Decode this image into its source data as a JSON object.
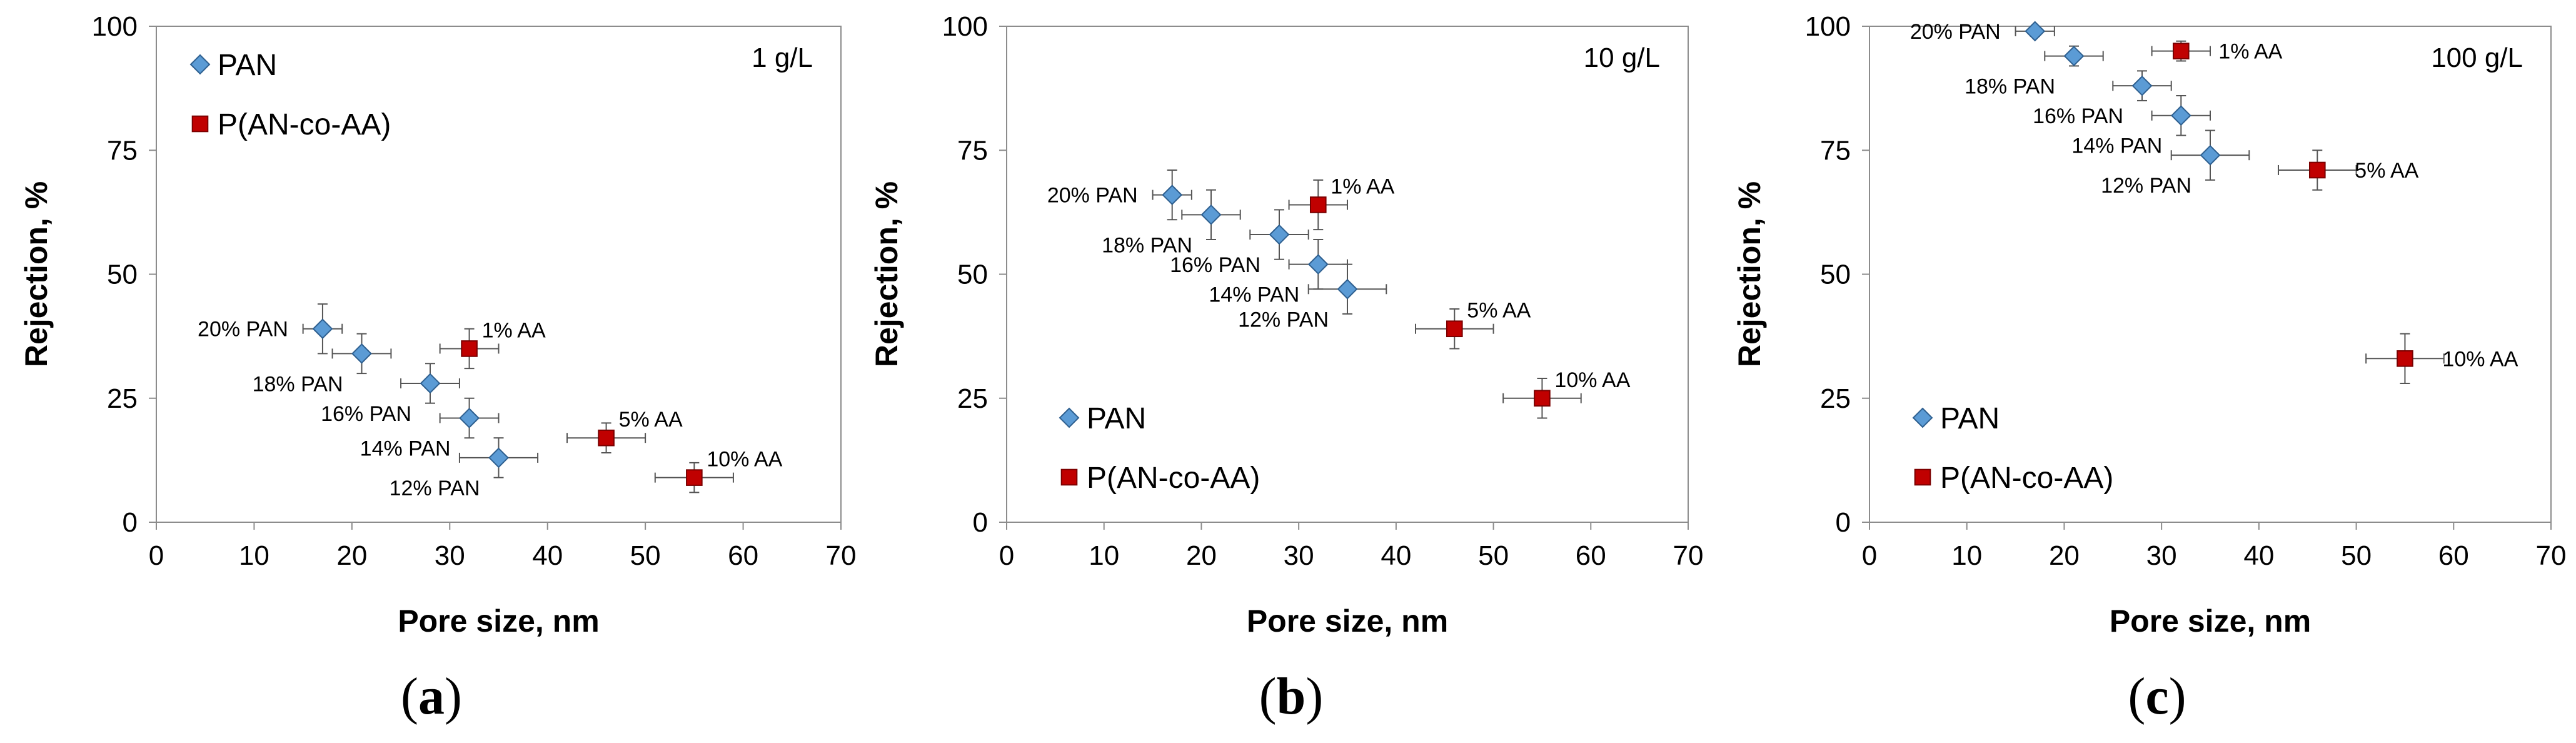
{
  "chart_data": [
    {
      "type": "scatter",
      "panel_label": "a",
      "annotation": "1 g/L",
      "xlabel": "Pore size, nm",
      "ylabel": "Rejection, %",
      "xlim": [
        0,
        70
      ],
      "ylim": [
        0,
        100
      ],
      "xticks": [
        0,
        10,
        20,
        30,
        40,
        50,
        60,
        70
      ],
      "yticks": [
        0,
        25,
        50,
        75,
        100
      ],
      "legend_position": "top-left",
      "grid": false,
      "series": [
        {
          "name": "PAN",
          "marker": "diamond",
          "color": "#5b9bd5",
          "points": [
            {
              "x": 17,
              "y": 39,
              "xerr": 2,
              "yerr": 5,
              "label": "20% PAN",
              "label_side": "left"
            },
            {
              "x": 21,
              "y": 34,
              "xerr": 3,
              "yerr": 4,
              "label": "18% PAN",
              "label_side": "below-left"
            },
            {
              "x": 28,
              "y": 28,
              "xerr": 3,
              "yerr": 4,
              "label": "16% PAN",
              "label_side": "below-left"
            },
            {
              "x": 32,
              "y": 21,
              "xerr": 3,
              "yerr": 4,
              "label": "14% PAN",
              "label_side": "below-left"
            },
            {
              "x": 35,
              "y": 13,
              "xerr": 4,
              "yerr": 4,
              "label": "12% PAN",
              "label_side": "below-left"
            }
          ]
        },
        {
          "name": "P(AN-co-AA)",
          "marker": "square",
          "color": "#c00000",
          "points": [
            {
              "x": 32,
              "y": 35,
              "xerr": 3,
              "yerr": 4,
              "label": "1% AA",
              "label_side": "above-right"
            },
            {
              "x": 46,
              "y": 17,
              "xerr": 4,
              "yerr": 3,
              "label": "5% AA",
              "label_side": "above-right"
            },
            {
              "x": 55,
              "y": 9,
              "xerr": 4,
              "yerr": 3,
              "label": "10% AA",
              "label_side": "above-right"
            }
          ]
        }
      ]
    },
    {
      "type": "scatter",
      "panel_label": "b",
      "annotation": "10 g/L",
      "xlabel": "Pore size, nm",
      "ylabel": "Rejection, %",
      "xlim": [
        0,
        70
      ],
      "ylim": [
        0,
        100
      ],
      "xticks": [
        0,
        10,
        20,
        30,
        40,
        50,
        60,
        70
      ],
      "yticks": [
        0,
        25,
        50,
        75,
        100
      ],
      "legend_position": "bottom-left",
      "grid": false,
      "series": [
        {
          "name": "PAN",
          "marker": "diamond",
          "color": "#5b9bd5",
          "points": [
            {
              "x": 17,
              "y": 66,
              "xerr": 2,
              "yerr": 5,
              "label": "20% PAN",
              "label_side": "left"
            },
            {
              "x": 21,
              "y": 62,
              "xerr": 3,
              "yerr": 5,
              "label": "18% PAN",
              "label_side": "below-left"
            },
            {
              "x": 28,
              "y": 58,
              "xerr": 3,
              "yerr": 5,
              "label": "16% PAN",
              "label_side": "below-left"
            },
            {
              "x": 32,
              "y": 52,
              "xerr": 3,
              "yerr": 5,
              "label": "14% PAN",
              "label_side": "below-left"
            },
            {
              "x": 35,
              "y": 47,
              "xerr": 4,
              "yerr": 5,
              "label": "12% PAN",
              "label_side": "below-left"
            }
          ]
        },
        {
          "name": "P(AN-co-AA)",
          "marker": "square",
          "color": "#c00000",
          "points": [
            {
              "x": 32,
              "y": 64,
              "xerr": 3,
              "yerr": 5,
              "label": "1% AA",
              "label_side": "above-right"
            },
            {
              "x": 46,
              "y": 39,
              "xerr": 4,
              "yerr": 4,
              "label": "5% AA",
              "label_side": "above-right"
            },
            {
              "x": 55,
              "y": 25,
              "xerr": 4,
              "yerr": 4,
              "label": "10% AA",
              "label_side": "above-right"
            }
          ]
        }
      ]
    },
    {
      "type": "scatter",
      "panel_label": "c",
      "annotation": "100 g/L",
      "xlabel": "Pore size, nm",
      "ylabel": "Rejection, %",
      "xlim": [
        0,
        70
      ],
      "ylim": [
        0,
        100
      ],
      "xticks": [
        0,
        10,
        20,
        30,
        40,
        50,
        60,
        70
      ],
      "yticks": [
        0,
        25,
        50,
        75,
        100
      ],
      "legend_position": "bottom-left",
      "grid": false,
      "series": [
        {
          "name": "PAN",
          "marker": "diamond",
          "color": "#5b9bd5",
          "points": [
            {
              "x": 17,
              "y": 99,
              "xerr": 2,
              "yerr": 1,
              "label": "20% PAN",
              "label_side": "left"
            },
            {
              "x": 21,
              "y": 94,
              "xerr": 3,
              "yerr": 2,
              "label": "18% PAN",
              "label_side": "below-left"
            },
            {
              "x": 28,
              "y": 88,
              "xerr": 3,
              "yerr": 3,
              "label": "16% PAN",
              "label_side": "below-left"
            },
            {
              "x": 32,
              "y": 82,
              "xerr": 3,
              "yerr": 4,
              "label": "14% PAN",
              "label_side": "below-left"
            },
            {
              "x": 35,
              "y": 74,
              "xerr": 4,
              "yerr": 5,
              "label": "12% PAN",
              "label_side": "below-left"
            }
          ]
        },
        {
          "name": "P(AN-co-AA)",
          "marker": "square",
          "color": "#c00000",
          "points": [
            {
              "x": 32,
              "y": 95,
              "xerr": 3,
              "yerr": 2,
              "label": "1% AA",
              "label_side": "right"
            },
            {
              "x": 46,
              "y": 71,
              "xerr": 4,
              "yerr": 4,
              "label": "5% AA",
              "label_side": "right"
            },
            {
              "x": 55,
              "y": 33,
              "xerr": 4,
              "yerr": 5,
              "label": "10% AA",
              "label_side": "right"
            }
          ]
        }
      ]
    }
  ]
}
